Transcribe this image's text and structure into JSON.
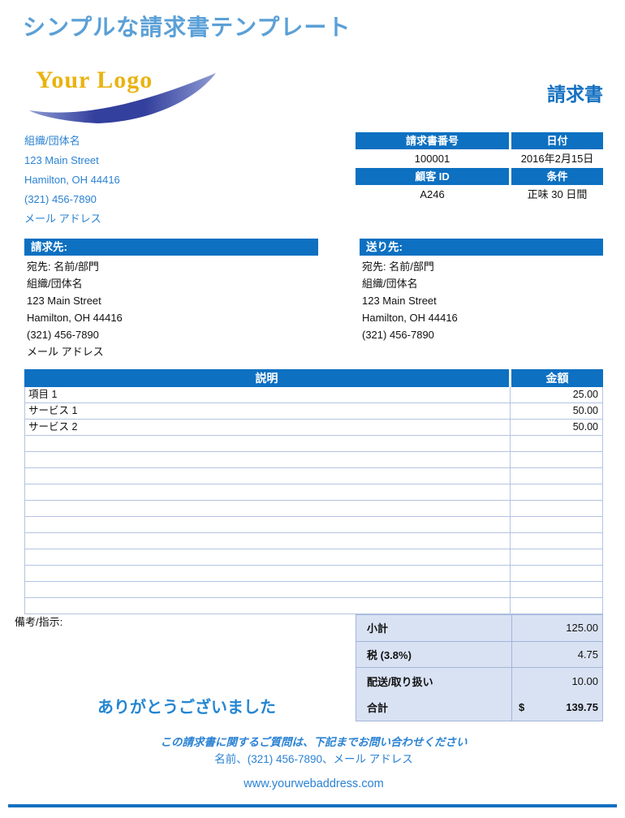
{
  "page": {
    "title": "シンプルな請求書テンプレート",
    "logo_text": "Your Logo",
    "doc_title": "請求書"
  },
  "company": {
    "lines": [
      "組織/団体名",
      "123 Main Street",
      "Hamilton, OH 44416",
      "(321) 456-7890",
      "メール アドレス"
    ]
  },
  "meta": {
    "invoice_number_label": "請求書番号",
    "date_label": "日付",
    "invoice_number": "100001",
    "date": "2016年2月15日",
    "customer_id_label": "顧客 ID",
    "terms_label": "条件",
    "customer_id": "A246",
    "terms": "正味 30 日間"
  },
  "bill_to": {
    "header": "請求先:",
    "lines": [
      "宛先: 名前/部門",
      "組織/団体名",
      "123 Main Street",
      "Hamilton, OH 44416",
      "(321) 456-7890",
      "メール アドレス"
    ]
  },
  "ship_to": {
    "header": "送り先:",
    "lines": [
      "宛先: 名前/部門",
      "組織/団体名",
      "123 Main Street",
      "Hamilton, OH 44416",
      "(321) 456-7890"
    ]
  },
  "items": {
    "headers": {
      "description": "説明",
      "amount": "金額"
    },
    "rows": [
      {
        "description": "項目 1",
        "amount": "25.00"
      },
      {
        "description": "サービス 1",
        "amount": "50.00"
      },
      {
        "description": "サービス 2",
        "amount": "50.00"
      }
    ],
    "empty_row_count": 11
  },
  "notes_label": "備考/指示:",
  "totals": {
    "rows": [
      {
        "label": "小計",
        "value": "125.00"
      },
      {
        "label": "税 (3.8%)",
        "value": "4.75"
      },
      {
        "label": "配送/取り扱い",
        "value": "10.00"
      }
    ],
    "total_label": "合計",
    "currency_symbol": "$",
    "total_value": "139.75"
  },
  "thanks": "ありがとうございました",
  "footer": {
    "contact_line1": "この請求書に関するご質問は、下記までお問い合わせください",
    "contact_line2": "名前、(321) 456-7890、メール アドレス",
    "website": "www.yourwebaddress.com"
  },
  "colors": {
    "accent_bar_blue": "#0D70C1",
    "title_light_blue": "#5BA0D7",
    "text_blue": "#2B82D3",
    "doc_title_blue": "#1470C0",
    "thanks_blue": "#2486D2",
    "logo_gold": "#E9B310",
    "swoosh_dark_blue": "#33409D",
    "swoosh_light_blue": "#8E9BD3",
    "totals_bg": "#D9E2F3",
    "table_border": "#B4C3E2",
    "totals_border": "#A3B5DA"
  }
}
